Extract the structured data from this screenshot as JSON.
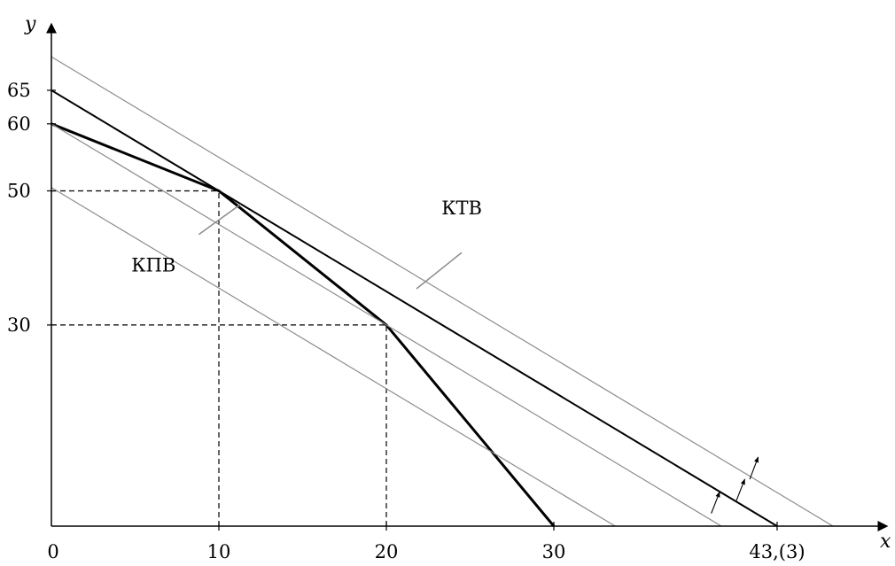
{
  "chart_data": {
    "type": "line",
    "title": "",
    "xlabel": "x",
    "ylabel": "y",
    "xlim": [
      0,
      50
    ],
    "ylim": [
      0,
      75
    ],
    "grid": false,
    "x_ticks": [
      {
        "value": 0,
        "label": "0"
      },
      {
        "value": 10,
        "label": "10"
      },
      {
        "value": 20,
        "label": "20"
      },
      {
        "value": 30,
        "label": "30"
      },
      {
        "value": 43.333,
        "label": "43,(3)"
      }
    ],
    "y_ticks": [
      {
        "value": 30,
        "label": "30"
      },
      {
        "value": 50,
        "label": "50"
      },
      {
        "value": 60,
        "label": "60"
      },
      {
        "value": 65,
        "label": "65"
      }
    ],
    "series": [
      {
        "name": "КПВ",
        "style": "bold",
        "x": [
          0,
          10,
          20,
          30
        ],
        "y": [
          60,
          50,
          30,
          0
        ]
      },
      {
        "name": "КТВ",
        "style": "solid",
        "x": [
          0,
          43.333
        ],
        "y": [
          65,
          0
        ]
      },
      {
        "style": "iso",
        "x": [
          0,
          33.667
        ],
        "y": [
          50.5,
          0
        ]
      },
      {
        "style": "iso",
        "x": [
          0,
          40
        ],
        "y": [
          60,
          0
        ]
      },
      {
        "style": "iso",
        "x": [
          0,
          46.667
        ],
        "y": [
          70,
          0
        ]
      }
    ],
    "guides": [
      {
        "from": [
          0,
          50
        ],
        "to": [
          10,
          50
        ]
      },
      {
        "from": [
          10,
          0
        ],
        "to": [
          10,
          50
        ]
      },
      {
        "from": [
          0,
          30
        ],
        "to": [
          20,
          30
        ]
      },
      {
        "from": [
          20,
          0
        ],
        "to": [
          20,
          30
        ]
      }
    ],
    "annotations": [
      {
        "text": "КПВ",
        "label_at": [
          6.1,
          38
        ],
        "leader_from": [
          8.8,
          43.5
        ],
        "leader_to": [
          11.3,
          48
        ]
      },
      {
        "text": "КТВ",
        "label_at": [
          24.5,
          46.5
        ],
        "leader_from": [
          21.8,
          35.4
        ],
        "leader_to": [
          24.5,
          40.8
        ]
      }
    ],
    "arrows": [
      {
        "from": [
          39.4,
          1.9
        ],
        "to": [
          39.9,
          5.1
        ]
      },
      {
        "from": [
          40.9,
          3.8
        ],
        "to": [
          41.4,
          7.0
        ]
      },
      {
        "from": [
          41.7,
          7.0
        ],
        "to": [
          42.2,
          10.3
        ]
      }
    ]
  }
}
